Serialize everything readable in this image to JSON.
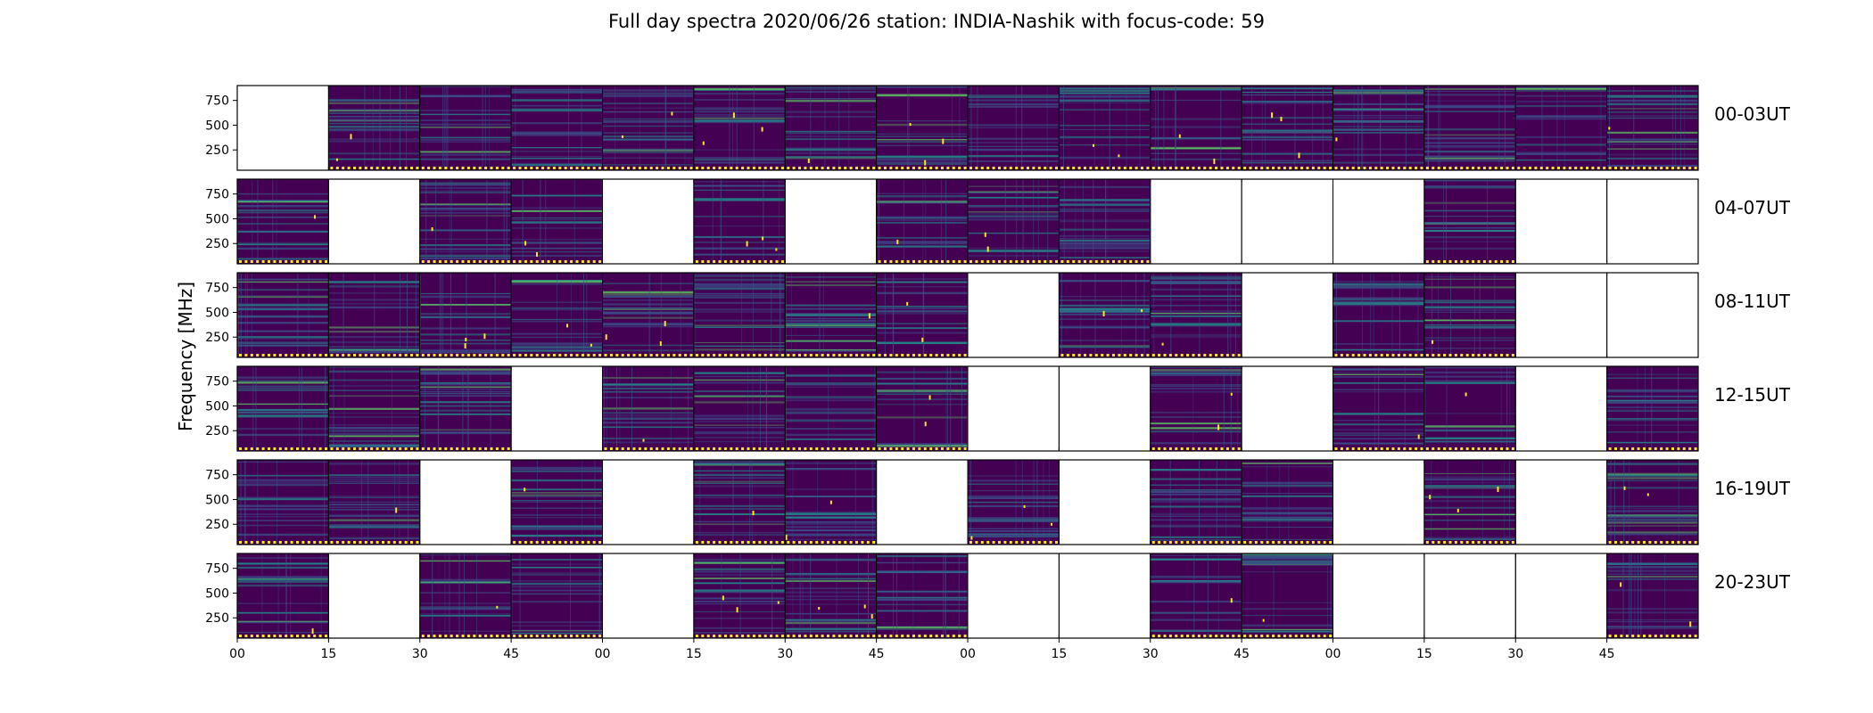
{
  "chart_data": {
    "type": "heatmap",
    "title": "Full day spectra 2020/06/26 station: INDIA-Nashik with focus-code: 59",
    "ylabel": "Frequency [MHz]",
    "xlabel": "",
    "y_ticks": [
      "750",
      "500",
      "250"
    ],
    "y_tick_values": [
      750,
      500,
      250
    ],
    "ylim": [
      45,
      900
    ],
    "x_ticks": [
      "00",
      "15",
      "30",
      "45",
      "00",
      "15",
      "30",
      "45",
      "00",
      "15",
      "30",
      "45",
      "00",
      "15",
      "30",
      "45"
    ],
    "rows": [
      {
        "label": "00-03UT",
        "panels": [
          0,
          1,
          1,
          1,
          1,
          1,
          1,
          1,
          1,
          1,
          1,
          1,
          1,
          1,
          1,
          1
        ]
      },
      {
        "label": "04-07UT",
        "panels": [
          1,
          0,
          1,
          1,
          0,
          1,
          0,
          1,
          1,
          1,
          0,
          0,
          0,
          1,
          0,
          0
        ]
      },
      {
        "label": "08-11UT",
        "panels": [
          1,
          1,
          1,
          1,
          1,
          1,
          1,
          1,
          0,
          1,
          1,
          0,
          1,
          1,
          0,
          0
        ]
      },
      {
        "label": "12-15UT",
        "panels": [
          1,
          1,
          1,
          0,
          1,
          1,
          1,
          1,
          0,
          0,
          1,
          0,
          1,
          1,
          0,
          1
        ]
      },
      {
        "label": "16-19UT",
        "panels": [
          1,
          1,
          0,
          1,
          0,
          1,
          1,
          0,
          1,
          0,
          1,
          1,
          0,
          1,
          0,
          1
        ]
      },
      {
        "label": "20-23UT",
        "panels": [
          1,
          0,
          1,
          1,
          0,
          1,
          1,
          1,
          0,
          0,
          1,
          1,
          0,
          0,
          0,
          1
        ]
      }
    ],
    "colormap": [
      "#440154",
      "#3b528b",
      "#21918c",
      "#5ec962",
      "#fde725"
    ]
  }
}
